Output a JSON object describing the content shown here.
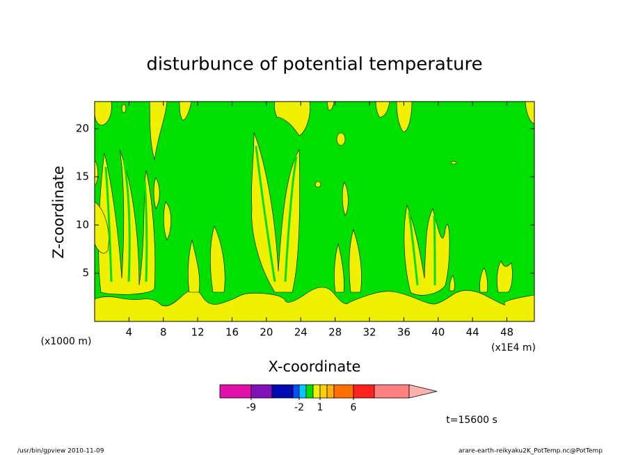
{
  "chart_data": {
    "type": "contour",
    "title": "disturbunce of potential temperature",
    "xlabel": "X-coordinate",
    "ylabel": "Z-coordinate",
    "x_unit": "(x1000 m)",
    "x_scale_note": "(x1E4 m)",
    "xlim": [
      0,
      51.2
    ],
    "ylim": [
      0,
      22.8
    ],
    "xticks": [
      4,
      8,
      12,
      16,
      20,
      24,
      28,
      32,
      36,
      40,
      44,
      48
    ],
    "yticks": [
      5,
      10,
      15,
      20
    ],
    "colorbar": {
      "colors": [
        "#e010a8",
        "#8010b8",
        "#0008b0",
        "#0050ff",
        "#00c8ff",
        "#00e000",
        "#f0f000",
        "#ffd000",
        "#ffb000",
        "#ff7000",
        "#ff2020",
        "#ff8080",
        "#ffb0b0"
      ],
      "ticks": [
        -9,
        -2,
        1,
        6
      ]
    },
    "time_label": "t=15600 s",
    "footer_left": "/usr/bin/gpview   2010-11-09",
    "footer_right": "arare-earth-reikyaku2K_PotTemp.nc@PotTemp"
  }
}
